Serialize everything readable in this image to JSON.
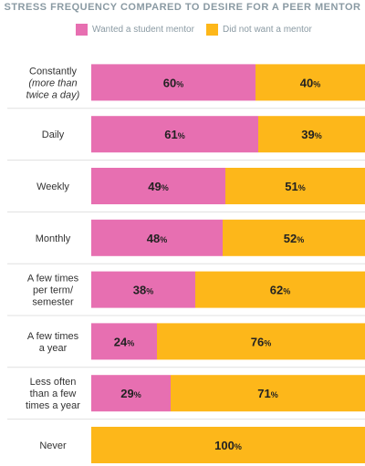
{
  "colors": {
    "wanted": "#e76fb1",
    "not_wanted": "#fdb71a",
    "divider": "#e0e0e0",
    "label": "#333333"
  },
  "chart_data": {
    "type": "bar",
    "orientation": "horizontal-stacked-100",
    "title": "STRESS FREQUENCY COMPARED TO DESIRE FOR A PEER MENTOR",
    "categories": [
      {
        "lines": [
          "Constantly",
          "(more than",
          "twice a day)"
        ],
        "italic_from": 1
      },
      {
        "lines": [
          "Daily"
        ]
      },
      {
        "lines": [
          "Weekly"
        ]
      },
      {
        "lines": [
          "Monthly"
        ]
      },
      {
        "lines": [
          "A few times",
          "per term/",
          "semester"
        ]
      },
      {
        "lines": [
          "A few times",
          "a year"
        ]
      },
      {
        "lines": [
          "Less often",
          "than a few",
          "times a year"
        ]
      },
      {
        "lines": [
          "Never"
        ]
      }
    ],
    "series": [
      {
        "name": "Wanted a student mentor",
        "values": [
          60,
          61,
          49,
          48,
          38,
          24,
          29,
          0
        ]
      },
      {
        "name": "Did not want a mentor",
        "values": [
          40,
          39,
          51,
          52,
          62,
          76,
          71,
          100
        ]
      }
    ],
    "unit": "%",
    "xlim": [
      0,
      100
    ],
    "legend": "top"
  }
}
